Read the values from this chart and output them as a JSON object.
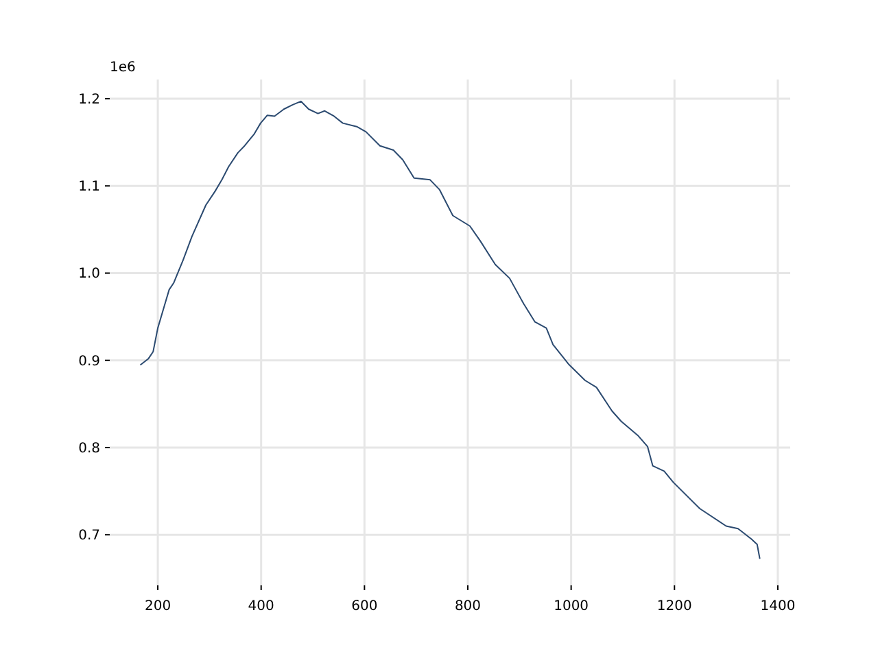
{
  "chart_data": {
    "type": "line",
    "x": [
      167,
      182,
      191,
      200,
      213,
      222,
      231,
      249,
      266,
      293,
      311,
      324,
      337,
      355,
      368,
      386,
      399,
      412,
      426,
      444,
      461,
      477,
      492,
      510,
      523,
      541,
      558,
      585,
      603,
      630,
      656,
      674,
      696,
      727,
      745,
      771,
      804,
      824,
      853,
      881,
      908,
      930,
      952,
      965,
      996,
      1027,
      1049,
      1079,
      1097,
      1129,
      1148,
      1158,
      1180,
      1198,
      1249,
      1300,
      1323,
      1349,
      1360,
      1365
    ],
    "series": [
      {
        "color": "#2b4a70",
        "values": [
          0.895,
          0.902,
          0.91,
          0.937,
          0.963,
          0.981,
          0.989,
          1.015,
          1.042,
          1.078,
          1.094,
          1.107,
          1.122,
          1.138,
          1.146,
          1.159,
          1.172,
          1.181,
          1.18,
          1.188,
          1.193,
          1.197,
          1.188,
          1.183,
          1.186,
          1.18,
          1.172,
          1.168,
          1.162,
          1.146,
          1.141,
          1.13,
          1.109,
          1.107,
          1.096,
          1.066,
          1.054,
          1.037,
          1.01,
          0.994,
          0.965,
          0.944,
          0.937,
          0.918,
          0.895,
          0.877,
          0.869,
          0.842,
          0.83,
          0.814,
          0.801,
          0.779,
          0.773,
          0.76,
          0.73,
          0.71,
          0.707,
          0.695,
          0.689,
          0.673
        ]
      }
    ],
    "xlim": [
      107,
      1424
    ],
    "xticks": [
      200,
      400,
      600,
      800,
      1000,
      1200,
      1400
    ],
    "ylim": [
      0.642,
      1.222
    ],
    "yticks": [
      0.7,
      0.8,
      0.9,
      {
        "value": 1,
        "label": "1.0"
      },
      1.1,
      1.2
    ],
    "annotations": [
      "1e6"
    ],
    "grid": true
  }
}
